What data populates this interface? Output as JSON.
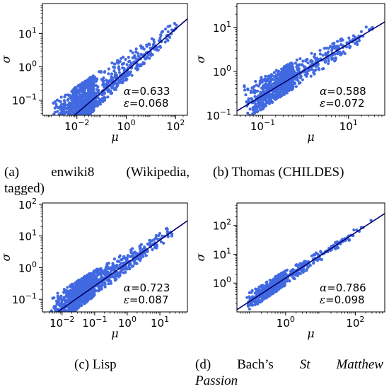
{
  "chart_data": [
    {
      "type": "scatter",
      "caption": "(a) enwiki8 (Wikipedia, tagged)",
      "caption_line1": "(a)  enwiki8  (Wikipedia,",
      "caption_line2": "tagged)",
      "xlabel": "μ",
      "ylabel": "σ",
      "xscale": "log",
      "yscale": "log",
      "xlim": [
        0.0004,
        300
      ],
      "ylim": [
        0.035,
        80
      ],
      "xticks": [
        {
          "v": 0.01,
          "base": "10",
          "exp": "−2"
        },
        {
          "v": 1,
          "base": "10",
          "exp": "0"
        },
        {
          "v": 100,
          "base": "10",
          "exp": "2"
        }
      ],
      "yticks": [
        {
          "v": 0.1,
          "base": "10",
          "exp": "−1"
        },
        {
          "v": 1,
          "base": "10",
          "exp": "0"
        },
        {
          "v": 10,
          "base": "10",
          "exp": "1"
        }
      ],
      "alpha_label": "α",
      "alpha_value": "=0.633",
      "epsilon_label": "ε",
      "epsilon_value": "=0.068",
      "fit": {
        "exponent": 0.633,
        "coef": 0.75
      },
      "cloud": {
        "x_min": 0.0008,
        "x_max": 150,
        "density_peak": 0.05,
        "upper_spread": 9,
        "lower_spread": 0.35,
        "n_points": 1400,
        "seed": 11
      },
      "marker_color": "#4169e1",
      "line_color": "#00006e"
    },
    {
      "type": "scatter",
      "caption": "(b) Thomas (CHILDES)",
      "xlabel": "μ",
      "ylabel": "σ",
      "xscale": "log",
      "yscale": "log",
      "xlim": [
        0.025,
        70
      ],
      "ylim": [
        0.1,
        35
      ],
      "xticks": [
        {
          "v": 0.1,
          "base": "10",
          "exp": "−1"
        },
        {
          "v": 10,
          "base": "10",
          "exp": "1"
        }
      ],
      "yticks": [
        {
          "v": 0.1,
          "base": "10",
          "exp": "−1"
        },
        {
          "v": 1,
          "base": "10",
          "exp": "0"
        },
        {
          "v": 10,
          "base": "10",
          "exp": "1"
        }
      ],
      "alpha_label": "α",
      "alpha_value": "=0.588",
      "epsilon_label": "ε",
      "epsilon_value": "=0.072",
      "fit": {
        "exponent": 0.588,
        "coef": 1.1
      },
      "cloud": {
        "x_min": 0.035,
        "x_max": 50,
        "density_peak": 0.5,
        "upper_spread": 3,
        "lower_spread": 0.45,
        "n_points": 900,
        "seed": 23
      },
      "marker_color": "#4169e1",
      "line_color": "#00006e"
    },
    {
      "type": "scatter",
      "caption": "(c) Lisp",
      "xlabel": "μ",
      "ylabel": "σ",
      "xscale": "log",
      "yscale": "log",
      "xlim": [
        0.0025,
        70
      ],
      "ylim": [
        0.04,
        110
      ],
      "xticks": [
        {
          "v": 0.01,
          "base": "10",
          "exp": "−2"
        },
        {
          "v": 0.1,
          "base": "10",
          "exp": "−1"
        },
        {
          "v": 1,
          "base": "10",
          "exp": "0"
        },
        {
          "v": 10,
          "base": "10",
          "exp": "1"
        }
      ],
      "yticks": [
        {
          "v": 0.1,
          "base": "10",
          "exp": "−1"
        },
        {
          "v": 1,
          "base": "10",
          "exp": "0"
        },
        {
          "v": 10,
          "base": "10",
          "exp": "1"
        },
        {
          "v": 100,
          "base": "10",
          "exp": "2"
        }
      ],
      "alpha_label": "α",
      "alpha_value": "=0.723",
      "epsilon_label": "ε",
      "epsilon_value": "=0.087",
      "fit": {
        "exponent": 0.723,
        "coef": 1.4
      },
      "cloud": {
        "x_min": 0.004,
        "x_max": 50,
        "density_peak": 0.1,
        "upper_spread": 4.5,
        "lower_spread": 0.4,
        "n_points": 1300,
        "seed": 37
      },
      "marker_color": "#4169e1",
      "line_color": "#00006e"
    },
    {
      "type": "scatter",
      "caption": "(d) Bach's St Matthew Passion",
      "caption_line1_prefix": "(d)  Bach’s ",
      "caption_line1_italic": "St  Matthew",
      "caption_line2_italic": "Passion",
      "xlabel": "μ",
      "ylabel": "σ",
      "xscale": "log",
      "yscale": "log",
      "xlim": [
        0.04,
        700
      ],
      "ylim": [
        0.1,
        600
      ],
      "xticks": [
        {
          "v": 1,
          "base": "10",
          "exp": "0"
        },
        {
          "v": 100,
          "base": "10",
          "exp": "2"
        }
      ],
      "yticks": [
        {
          "v": 1,
          "base": "10",
          "exp": "0"
        },
        {
          "v": 10,
          "base": "10",
          "exp": "1"
        },
        {
          "v": 100,
          "base": "10",
          "exp": "2"
        }
      ],
      "alpha_label": "α",
      "alpha_value": "=0.786",
      "epsilon_label": "ε",
      "epsilon_value": "=0.098",
      "fit": {
        "exponent": 0.786,
        "coef": 1.5
      },
      "cloud": {
        "x_min": 0.06,
        "x_max": 400,
        "density_peak": 1,
        "upper_spread": 2.2,
        "lower_spread": 0.5,
        "n_points": 650,
        "seed": 53
      },
      "marker_color": "#4169e1",
      "line_color": "#00006e"
    }
  ]
}
